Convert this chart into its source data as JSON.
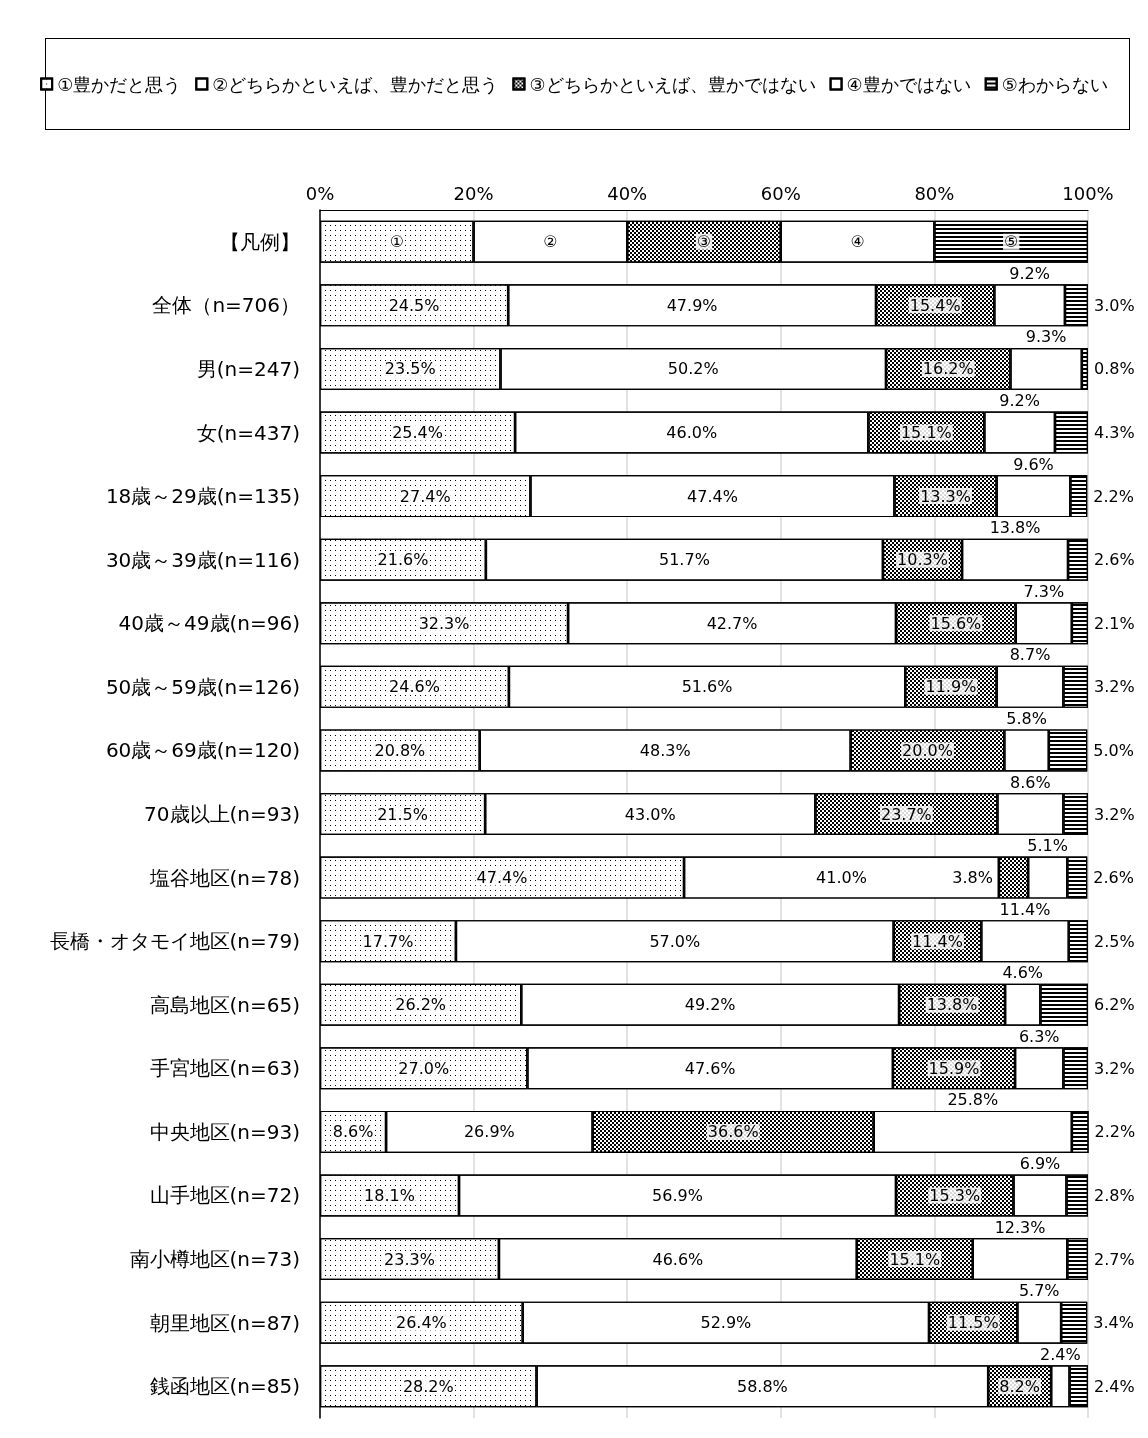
{
  "chart_data": {
    "type": "bar",
    "orientation": "horizontal",
    "stacked": true,
    "legend": "top",
    "grid": "x",
    "categories": [
      "【凡例】",
      "全体（n=706）",
      "男(n=247)",
      "女(n=437)",
      "18歳～29歳(n=135)",
      "30歳～39歳(n=116)",
      "40歳～49歳(n=96)",
      "50歳～59歳(n=126)",
      "60歳～69歳(n=120)",
      "70歳以上(n=93)",
      "塩谷地区(n=78)",
      "長橋・オタモイ地区(n=79)",
      "高島地区(n=65)",
      "手宮地区(n=63)",
      "中央地区(n=93)",
      "山手地区(n=72)",
      "南小樽地区(n=73)",
      "朝里地区(n=87)",
      "銭函地区(n=85)"
    ],
    "xlim": [
      0,
      100
    ],
    "xticks": [
      {
        "value": 0,
        "label": "0%"
      },
      {
        "value": 20,
        "label": "20%"
      },
      {
        "value": 40,
        "label": "40%"
      },
      {
        "value": 60,
        "label": "60%"
      },
      {
        "value": 80,
        "label": "80%"
      },
      {
        "value": 100,
        "label": "100%"
      }
    ],
    "series": [
      {
        "name": "①豊かだと思う",
        "color": "#ffffff",
        "values": [
          20,
          24.5,
          23.5,
          25.4,
          27.4,
          21.6,
          32.3,
          24.6,
          20.8,
          21.5,
          47.4,
          17.7,
          26.2,
          27.0,
          8.6,
          18.1,
          23.3,
          26.4,
          28.2
        ],
        "value_labels": [
          "①",
          "24.5%",
          "23.5%",
          "25.4%",
          "27.4%",
          "21.6%",
          "32.3%",
          "24.6%",
          "20.8%",
          "21.5%",
          "47.4%",
          "17.7%",
          "26.2%",
          "27.0%",
          "8.6%",
          "18.1%",
          "23.3%",
          "26.4%",
          "28.2%"
        ]
      },
      {
        "name": "②どちらかといえば、豊かだと思う",
        "color": "#ffffff",
        "values": [
          20,
          47.9,
          50.2,
          46.0,
          47.4,
          51.7,
          42.7,
          51.6,
          48.3,
          43.0,
          41.0,
          57.0,
          49.2,
          47.6,
          26.9,
          56.9,
          46.6,
          52.9,
          58.8
        ],
        "value_labels": [
          "②",
          "47.9%",
          "50.2%",
          "46.0%",
          "47.4%",
          "51.7%",
          "42.7%",
          "51.6%",
          "48.3%",
          "43.0%",
          "41.0%",
          "57.0%",
          "49.2%",
          "47.6%",
          "26.9%",
          "56.9%",
          "46.6%",
          "52.9%",
          "58.8%"
        ]
      },
      {
        "name": "③どちらかといえば、豊かではない",
        "color": "#ffffff",
        "values": [
          20,
          15.4,
          16.2,
          15.1,
          13.3,
          10.3,
          15.6,
          11.9,
          20.0,
          23.7,
          3.8,
          11.4,
          13.8,
          15.9,
          36.6,
          15.3,
          15.1,
          11.5,
          8.2
        ],
        "value_labels": [
          "③",
          "15.4%",
          "16.2%",
          "15.1%",
          "13.3%",
          "10.3%",
          "15.6%",
          "11.9%",
          "20.0%",
          "23.7%",
          "3.8%",
          "11.4%",
          "13.8%",
          "15.9%",
          "36.6%",
          "15.3%",
          "15.1%",
          "11.5%",
          "8.2%"
        ]
      },
      {
        "name": "④豊かではない",
        "color": "#ffffff",
        "values": [
          20,
          9.2,
          9.3,
          9.2,
          9.6,
          13.8,
          7.3,
          8.7,
          5.8,
          8.6,
          5.1,
          11.4,
          4.6,
          6.3,
          25.8,
          6.9,
          12.3,
          5.7,
          2.4
        ],
        "value_labels": [
          "④",
          "9.2%",
          "9.3%",
          "9.2%",
          "9.6%",
          "13.8%",
          "7.3%",
          "8.7%",
          "5.8%",
          "8.6%",
          "5.1%",
          "11.4%",
          "4.6%",
          "6.3%",
          "25.8%",
          "6.9%",
          "12.3%",
          "5.7%",
          "2.4%"
        ]
      },
      {
        "name": "⑤わからない",
        "color": "#ffffff",
        "values": [
          20,
          3.0,
          0.8,
          4.3,
          2.2,
          2.6,
          2.1,
          3.2,
          5.0,
          3.2,
          2.6,
          2.5,
          6.2,
          3.2,
          2.2,
          2.8,
          2.7,
          3.4,
          2.4
        ],
        "value_labels": [
          "⑤",
          "3.0%",
          "0.8%",
          "4.3%",
          "2.2%",
          "2.6%",
          "2.1%",
          "3.2%",
          "5.0%",
          "3.2%",
          "2.6%",
          "2.5%",
          "6.2%",
          "3.2%",
          "2.2%",
          "2.8%",
          "2.7%",
          "3.4%",
          "2.4%"
        ]
      }
    ]
  }
}
